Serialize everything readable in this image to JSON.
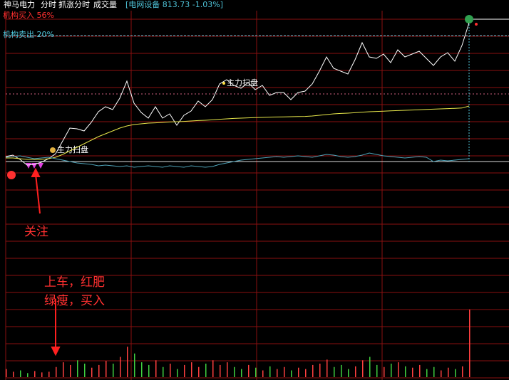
{
  "header": {
    "stock_name": "神马电力",
    "tabs": [
      "分时",
      "抓涨分时",
      "成交量"
    ],
    "index_label": "[电网设备 813.73 -1.03%]",
    "buy_label": "机构买入 56%",
    "sell_label": "机构卖出 20%"
  },
  "annotations": {
    "sweep_1": "主力扫盘",
    "sweep_2": "主力扫盘",
    "watch": "关注",
    "tip_line_1": "上车，红肥",
    "tip_line_2": "绿瘦，买入"
  },
  "chart_data": [
    {
      "type": "line",
      "ylim": [
        -1,
        10.5
      ],
      "series": [
        {
          "color": "#ffffff",
          "values": [
            0.35,
            0.45,
            0.15,
            -0.25,
            -0.2,
            -0.05,
            0.2,
            0.55,
            1.45,
            2.35,
            2.3,
            2.15,
            2.75,
            3.5,
            3.85,
            3.65,
            4.45,
            5.65,
            4.1,
            3.45,
            3.05,
            3.85,
            3.05,
            3.35,
            2.55,
            3.25,
            3.55,
            4.25,
            3.85,
            4.35,
            5.45,
            5.75,
            5.35,
            5.15,
            5.55,
            5.05,
            5.35,
            4.65,
            4.85,
            4.85,
            4.35,
            4.85,
            4.95,
            5.45,
            6.35,
            7.35,
            6.55,
            6.35,
            6.15,
            7.15,
            8.35,
            7.35,
            7.25,
            7.55,
            6.95,
            7.85,
            7.35,
            7.55,
            7.75,
            7.25,
            6.75,
            7.35,
            7.65,
            7.05,
            8.15,
            9.75
          ]
        },
        {
          "color": "#e6e64a",
          "values": [
            0.25,
            0.25,
            0.2,
            0.15,
            0.15,
            0.15,
            0.2,
            0.3,
            0.5,
            0.75,
            1.0,
            1.25,
            1.5,
            1.75,
            1.95,
            2.15,
            2.35,
            2.5,
            2.6,
            2.65,
            2.7,
            2.72,
            2.75,
            2.78,
            2.8,
            2.82,
            2.85,
            2.88,
            2.9,
            2.93,
            2.97,
            3.0,
            3.03,
            3.05,
            3.07,
            3.09,
            3.1,
            3.12,
            3.13,
            3.14,
            3.15,
            3.16,
            3.17,
            3.2,
            3.25,
            3.3,
            3.35,
            3.38,
            3.4,
            3.43,
            3.47,
            3.5,
            3.52,
            3.54,
            3.56,
            3.58,
            3.6,
            3.62,
            3.64,
            3.66,
            3.68,
            3.7,
            3.72,
            3.74,
            3.76,
            3.9
          ]
        },
        {
          "color": "#4fa3b8",
          "values": [
            0.3,
            0.35,
            0.4,
            0.3,
            0.2,
            0.25,
            0.3,
            0.2,
            0.1,
            0.0,
            -0.1,
            -0.15,
            -0.2,
            -0.3,
            -0.25,
            -0.3,
            -0.35,
            -0.3,
            -0.4,
            -0.35,
            -0.3,
            -0.35,
            -0.4,
            -0.3,
            -0.35,
            -0.4,
            -0.3,
            -0.35,
            -0.4,
            -0.35,
            -0.2,
            -0.1,
            0.0,
            0.1,
            0.15,
            0.2,
            0.25,
            0.3,
            0.35,
            0.3,
            0.35,
            0.4,
            0.35,
            0.3,
            0.4,
            0.5,
            0.45,
            0.35,
            0.3,
            0.35,
            0.45,
            0.6,
            0.5,
            0.4,
            0.35,
            0.3,
            0.25,
            0.3,
            0.35,
            0.3,
            0.0,
            0.1,
            0.05,
            0.1,
            0.15,
            0.2
          ]
        }
      ]
    },
    {
      "type": "bar",
      "ylim": [
        0,
        100
      ],
      "up_color": "#ff4040",
      "down_color": "#40d040",
      "values": [
        12,
        8,
        10,
        6,
        9,
        7,
        8,
        15,
        22,
        18,
        25,
        20,
        14,
        18,
        24,
        20,
        30,
        45,
        35,
        22,
        18,
        25,
        15,
        20,
        12,
        18,
        22,
        15,
        20,
        25,
        18,
        22,
        15,
        12,
        18,
        14,
        10,
        16,
        12,
        15,
        10,
        14,
        12,
        18,
        20,
        26,
        15,
        18,
        12,
        16,
        25,
        30,
        18,
        15,
        20,
        22,
        16,
        14,
        18,
        12,
        15,
        10,
        14,
        12,
        16,
        100
      ]
    }
  ]
}
